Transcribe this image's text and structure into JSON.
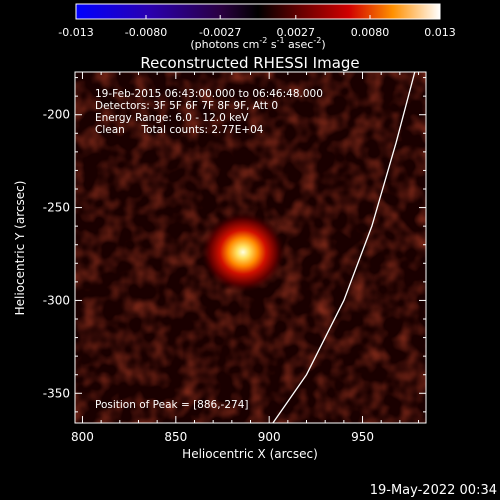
{
  "colorbar": {
    "tick_labels": [
      "-0.013",
      "-0.0080",
      "-0.0027",
      "0.0027",
      "0.0080",
      "0.013"
    ],
    "units_prefix": "(photons cm",
    "units_exp1": "-2",
    "units_mid": " s",
    "units_exp2": "-1",
    "units_mid2": " asec",
    "units_exp3": "-2",
    "units_suffix": ")"
  },
  "plot": {
    "title": "Reconstructed RHESSI Image",
    "xlabel": "Heliocentric X (arcsec)",
    "ylabel": "Heliocentric Y (arcsec)",
    "x_ticks": [
      "800",
      "850",
      "900",
      "950"
    ],
    "y_ticks": [
      "-200",
      "-250",
      "-300",
      "-350"
    ],
    "info_lines": [
      "19-Feb-2015 06:43:00.000 to 06:46:48.000",
      "Detectors: 3F 5F 6F 7F 8F 9F, Att 0",
      "Energy Range: 6.0 - 12.0 keV",
      "Clean     Total counts: 2.77E+04"
    ],
    "peak_text": "Position of Peak = [886,-274]"
  },
  "footer": {
    "timestamp": "19-May-2022 00:34"
  },
  "chart_data": {
    "type": "heatmap",
    "title": "Reconstructed RHESSI Image",
    "xlabel": "Heliocentric X (arcsec)",
    "ylabel": "Heliocentric Y (arcsec)",
    "xlim": [
      796,
      984
    ],
    "ylim": [
      -366,
      -177
    ],
    "colorbar_range": [
      -0.013,
      0.013
    ],
    "peak": {
      "x": 886,
      "y": -274
    },
    "limb_curve": [
      [
        902,
        -366
      ],
      [
        920,
        -340
      ],
      [
        940,
        -300
      ],
      [
        955,
        -260
      ],
      [
        968,
        -215
      ],
      [
        978,
        -177
      ]
    ]
  }
}
